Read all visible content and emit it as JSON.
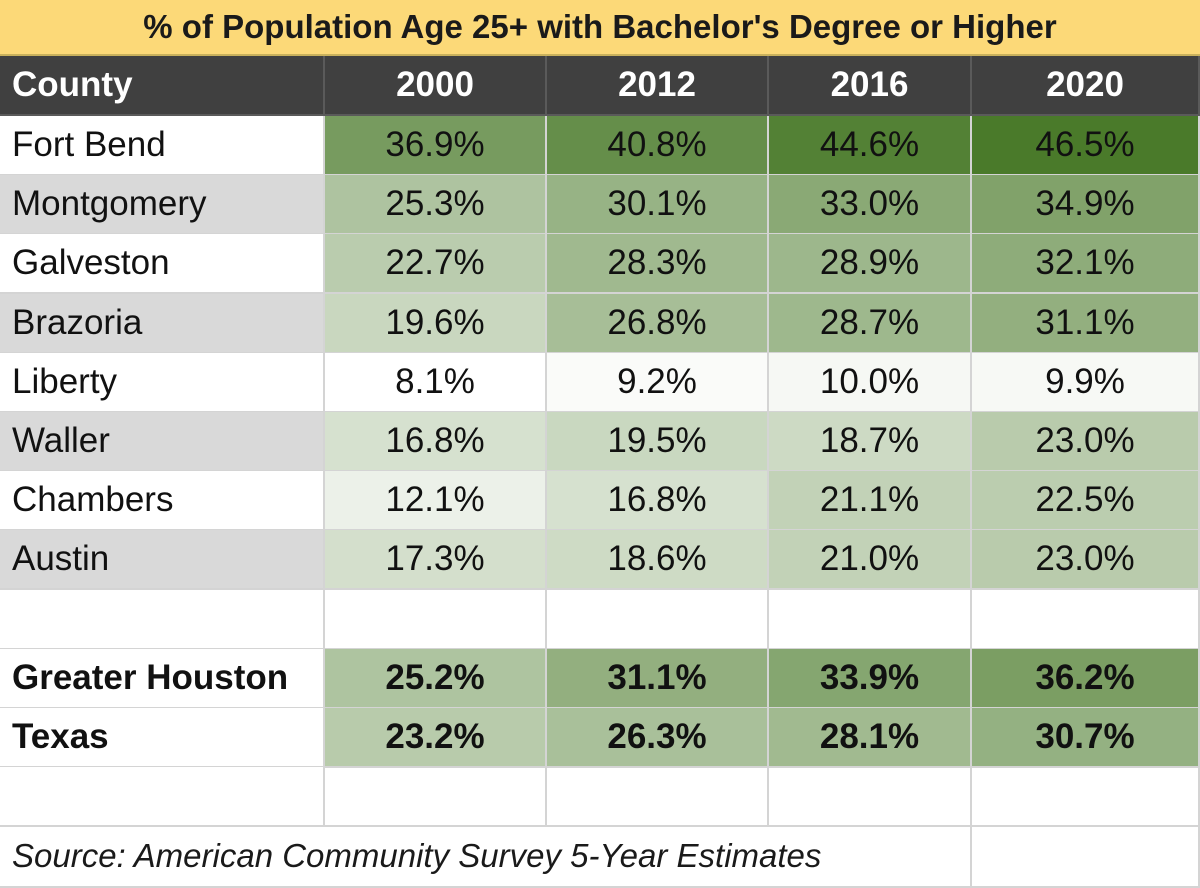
{
  "chart_data": {
    "type": "table",
    "title": "% of Population Age 25+ with Bachelor's Degree or Higher",
    "columns": [
      "County",
      "2000",
      "2012",
      "2016",
      "2020"
    ],
    "rows": [
      {
        "name": "Fort Bend",
        "values": [
          "36.9%",
          "40.8%",
          "44.6%",
          "46.5%"
        ],
        "bold": false
      },
      {
        "name": "Montgomery",
        "values": [
          "25.3%",
          "30.1%",
          "33.0%",
          "34.9%"
        ],
        "bold": false
      },
      {
        "name": "Galveston",
        "values": [
          "22.7%",
          "28.3%",
          "28.9%",
          "32.1%"
        ],
        "bold": false
      },
      {
        "name": "Brazoria",
        "values": [
          "19.6%",
          "26.8%",
          "28.7%",
          "31.1%"
        ],
        "bold": false
      },
      {
        "name": "Liberty",
        "values": [
          "8.1%",
          "9.2%",
          "10.0%",
          "9.9%"
        ],
        "bold": false
      },
      {
        "name": "Waller",
        "values": [
          "16.8%",
          "19.5%",
          "18.7%",
          "23.0%"
        ],
        "bold": false
      },
      {
        "name": "Chambers",
        "values": [
          "12.1%",
          "16.8%",
          "21.1%",
          "22.5%"
        ],
        "bold": false
      },
      {
        "name": "Austin",
        "values": [
          "17.3%",
          "18.6%",
          "21.0%",
          "23.0%"
        ],
        "bold": false
      },
      {
        "name": "",
        "values": [
          "",
          "",
          "",
          ""
        ],
        "bold": false
      },
      {
        "name": "Greater Houston",
        "values": [
          "25.2%",
          "31.1%",
          "33.9%",
          "36.2%"
        ],
        "bold": true
      },
      {
        "name": "Texas",
        "values": [
          "23.2%",
          "26.3%",
          "28.1%",
          "30.7%"
        ],
        "bold": true
      },
      {
        "name": "",
        "values": [
          "",
          "",
          "",
          ""
        ],
        "bold": false
      }
    ],
    "source": "Source: American Community Survey 5-Year Estimates",
    "color_scale": {
      "min": 8.1,
      "max": 46.5,
      "low_color": "#ffffff",
      "high_color": "#4a7a2a"
    }
  },
  "colors": {
    "title_bg": "#fcd978",
    "header_bg": "#404040",
    "county_alt_bg": "#d9d9d9",
    "county_bg": "#ffffff"
  }
}
